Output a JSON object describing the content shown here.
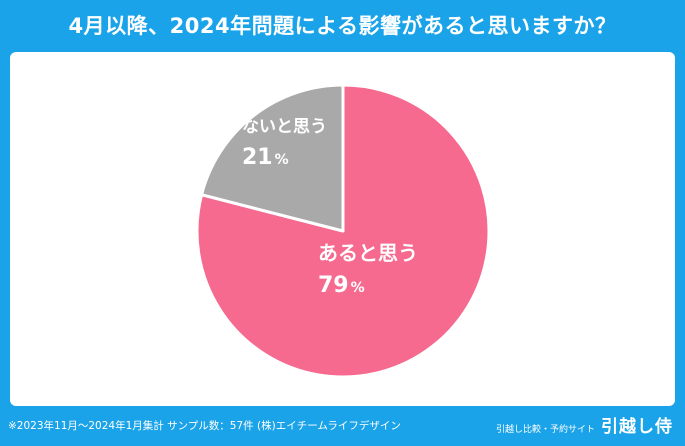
{
  "title": "4月以降、2024年問題による影響があると思いますか？",
  "chart_data": {
    "type": "pie",
    "title": "4月以降、2024年問題による影響があると思いますか？",
    "categories": [
      "あると思う",
      "ないと思う"
    ],
    "values": [
      79,
      21
    ],
    "unit": "%",
    "colors": [
      "#f56a8e",
      "#a9a9a9"
    ],
    "start_angle_deg": 0,
    "direction": "clockwise",
    "legend": "none"
  },
  "footer": {
    "note": "※2023年11月～2024年1月集計 サンプル数：57件 (株)エイチームライフデザイン",
    "brand_sub": "引越し比較・予約サイト",
    "brand_logo": "引越し侍"
  }
}
